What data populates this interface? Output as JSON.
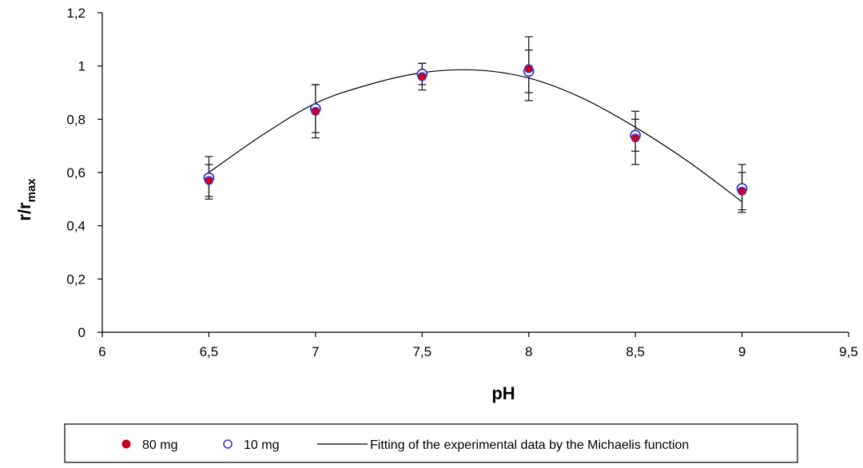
{
  "chart_data": {
    "type": "scatter",
    "xlabel": "pH",
    "ylabel_main": "r/r",
    "ylabel_sub": "max",
    "xlim": [
      6,
      9.5
    ],
    "ylim": [
      0,
      1.2
    ],
    "x_ticks": [
      "6",
      "6,5",
      "7",
      "7,5",
      "8",
      "8,5",
      "9",
      "9,5"
    ],
    "x_tick_values": [
      6,
      6.5,
      7,
      7.5,
      8,
      8.5,
      9,
      9.5
    ],
    "y_ticks": [
      "0",
      "0,2",
      "0,4",
      "0,6",
      "0,8",
      "1",
      "1,2"
    ],
    "y_tick_values": [
      0,
      0.2,
      0.4,
      0.6,
      0.8,
      1.0,
      1.2
    ],
    "grid": false,
    "legend_position": "bottom",
    "series": [
      {
        "name": "80 mg",
        "marker": "filled-circle",
        "color": "#c8001e",
        "edge_color": "#3b3bd0",
        "x": [
          6.5,
          7,
          7.5,
          8,
          8.5,
          9
        ],
        "y": [
          0.57,
          0.83,
          0.96,
          0.99,
          0.73,
          0.53
        ],
        "error": [
          0.06,
          0.1,
          0.05,
          0.12,
          0.1,
          0.07
        ]
      },
      {
        "name": "10 mg",
        "marker": "open-circle",
        "color": "#3b3bd0",
        "x": [
          6.5,
          7,
          7.5,
          8,
          8.5,
          9
        ],
        "y": [
          0.58,
          0.84,
          0.97,
          0.98,
          0.74,
          0.54
        ],
        "error": [
          0.08,
          0.09,
          0.04,
          0.08,
          0.06,
          0.09
        ]
      },
      {
        "name": "Fitting of the experimental data by the Michaelis function",
        "type": "line",
        "color": "#000000",
        "x": [
          6.5,
          6.75,
          7,
          7.25,
          7.5,
          7.75,
          8,
          8.25,
          8.5,
          8.75,
          9
        ],
        "y": [
          0.6,
          0.74,
          0.86,
          0.93,
          0.975,
          0.985,
          0.955,
          0.88,
          0.77,
          0.64,
          0.49
        ]
      }
    ]
  }
}
